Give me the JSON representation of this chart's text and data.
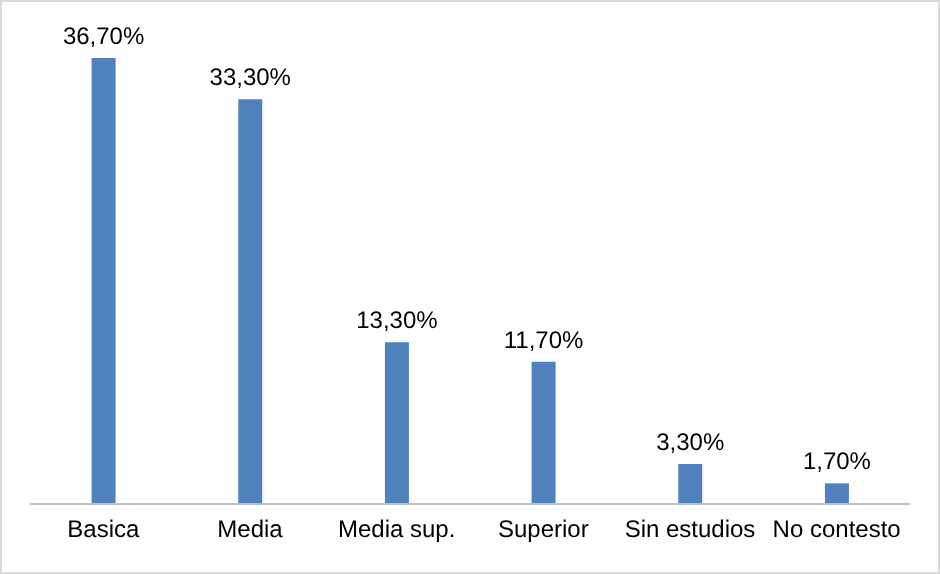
{
  "chart_data": {
    "type": "bar",
    "categories": [
      "Basica",
      "Media",
      "Media sup.",
      "Superior",
      "Sin estudios",
      "No contesto"
    ],
    "values": [
      36.7,
      33.3,
      13.3,
      11.7,
      3.3,
      1.7
    ],
    "value_labels": [
      "36,70%",
      "33,30%",
      "13,30%",
      "11,70%",
      "3,30%",
      "1,70%"
    ],
    "color": "#4f81bd"
  }
}
